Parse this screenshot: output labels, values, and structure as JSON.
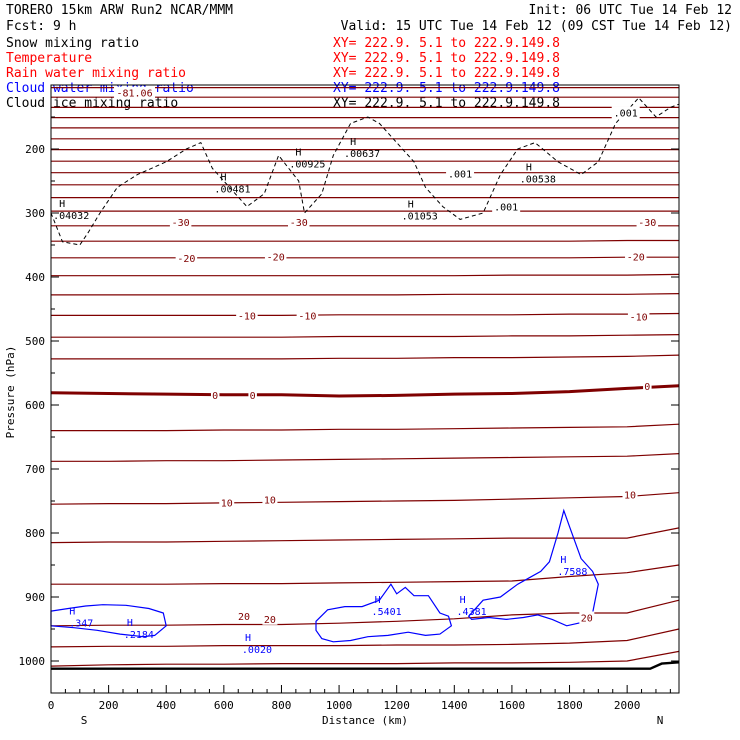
{
  "header": {
    "model": "TORERO  15km ARW   Run2    NCAR/MMM",
    "init": "Init: 06 UTC Tue 14 Feb 12",
    "fcst": "Fcst:    9 h",
    "valid": "Valid: 15 UTC Tue 14 Feb 12 (09 CST Tue 14 Feb 12)"
  },
  "fields": [
    {
      "name": "Snow mixing ratio",
      "range": "XY= 222.9.  5.1 to 222.9.149.8",
      "color": "#000000",
      "range_color": "#ff0000"
    },
    {
      "name": "Temperature",
      "range": "XY= 222.9.  5.1 to 222.9.149.8",
      "color": "#ff0000",
      "range_color": "#ff0000"
    },
    {
      "name": "Rain water mixing ratio",
      "range": "XY= 222.9.  5.1 to 222.9.149.8",
      "color": "#ff0000",
      "range_color": "#ff0000"
    },
    {
      "name": "Cloud water mixing ratio",
      "range": "XY= 222.9.  5.1 to 222.9.149.8",
      "color": "#0000ff",
      "range_color": "#0000ff"
    },
    {
      "name": "Cloud ice mixing ratio",
      "range": "XY= 222.9.  5.1 to 222.9.149.8",
      "color": "#000000",
      "range_color": "#000000"
    }
  ],
  "colors": {
    "temperature": "#7f0000",
    "cloud_water": "#0000ff",
    "snow": "#000000",
    "terrain": "#000000"
  },
  "chart_data": {
    "type": "line",
    "xlabel": "Distance (km)",
    "ylabel": "Pressure (hPa)",
    "xlim": [
      0,
      2180
    ],
    "ylim": [
      1050,
      100
    ],
    "x_ticks": [
      0,
      200,
      400,
      600,
      800,
      1000,
      1200,
      1400,
      1600,
      1800,
      2000
    ],
    "y_ticks": [
      200,
      300,
      400,
      500,
      600,
      700,
      800,
      900,
      1000
    ],
    "left_endpoint": "S",
    "right_endpoint": "N",
    "temperature_contours": {
      "interval_C": 5,
      "x": [
        0,
        200,
        400,
        600,
        800,
        1000,
        1200,
        1400,
        1600,
        1800,
        2000,
        2180
      ],
      "lines": [
        {
          "value": 30,
          "p": [
            1008,
            1006,
            1005,
            1005,
            1004,
            1004,
            1004,
            1003,
            1003,
            1002,
            1000,
            985
          ]
        },
        {
          "value": 25,
          "p": [
            978,
            977,
            977,
            976,
            976,
            976,
            975,
            975,
            974,
            972,
            968,
            950
          ]
        },
        {
          "value": 20,
          "p": [
            945,
            944,
            944,
            943,
            943,
            941,
            938,
            934,
            928,
            925,
            925,
            905
          ]
        },
        {
          "value": 15,
          "p": [
            880,
            880,
            880,
            879,
            879,
            878,
            877,
            876,
            875,
            868,
            862,
            850
          ]
        },
        {
          "value": 10,
          "p": [
            815,
            814,
            814,
            813,
            812,
            811,
            810,
            809,
            808,
            808,
            808,
            792
          ]
        },
        {
          "value": 10,
          "p": [
            755,
            754,
            754,
            753,
            752,
            751,
            750,
            749,
            747,
            745,
            743,
            737
          ]
        },
        {
          "value": 5,
          "p": [
            688,
            688,
            687,
            687,
            686,
            685,
            684,
            683,
            682,
            681,
            680,
            676
          ]
        },
        {
          "value": 5,
          "p": [
            640,
            640,
            640,
            639,
            639,
            638,
            638,
            637,
            636,
            635,
            634,
            630
          ]
        },
        {
          "value": 0,
          "p": [
            581,
            582,
            583,
            584,
            584,
            586,
            585,
            583,
            582,
            579,
            574,
            570
          ]
        },
        {
          "value": -5,
          "p": [
            528,
            528,
            528,
            528,
            528,
            527,
            527,
            526,
            526,
            525,
            524,
            522
          ]
        },
        {
          "value": -5,
          "p": [
            494,
            494,
            494,
            494,
            494,
            493,
            493,
            493,
            492,
            492,
            491,
            490
          ]
        },
        {
          "value": -10,
          "p": [
            460,
            460,
            460,
            460,
            460,
            459,
            459,
            459,
            459,
            458,
            458,
            457
          ]
        },
        {
          "value": -15,
          "p": [
            428,
            428,
            428,
            428,
            428,
            428,
            428,
            427,
            427,
            427,
            427,
            426
          ]
        },
        {
          "value": -15,
          "p": [
            398,
            398,
            398,
            398,
            398,
            398,
            398,
            398,
            397,
            397,
            397,
            396
          ]
        },
        {
          "value": -20,
          "p": [
            370,
            370,
            370,
            370,
            370,
            370,
            370,
            370,
            370,
            370,
            369,
            369
          ]
        },
        {
          "value": -25,
          "p": [
            344,
            344,
            344,
            344,
            344,
            344,
            344,
            344,
            344,
            344,
            343,
            343
          ]
        },
        {
          "value": -30,
          "p": [
            320,
            320,
            320,
            320,
            320,
            320,
            320,
            320,
            320,
            320,
            320,
            320
          ]
        },
        {
          "value": -35,
          "p": [
            297,
            297,
            297,
            297,
            297,
            297,
            297,
            297,
            297,
            297,
            297,
            297
          ]
        },
        {
          "value": -40,
          "p": [
            276,
            276,
            276,
            276,
            276,
            276,
            276,
            276,
            276,
            276,
            276,
            276
          ]
        },
        {
          "value": -45,
          "p": [
            256,
            256,
            256,
            256,
            256,
            256,
            256,
            256,
            256,
            256,
            256,
            256
          ]
        },
        {
          "value": -50,
          "p": [
            237,
            237,
            237,
            237,
            237,
            237,
            237,
            237,
            237,
            237,
            237,
            237
          ]
        },
        {
          "value": -55,
          "p": [
            219,
            219,
            219,
            219,
            219,
            219,
            219,
            219,
            219,
            219,
            219,
            219
          ]
        },
        {
          "value": -60,
          "p": [
            201,
            201,
            201,
            201,
            201,
            201,
            201,
            201,
            201,
            201,
            201,
            201
          ]
        },
        {
          "value": -65,
          "p": [
            184,
            184,
            184,
            184,
            184,
            184,
            184,
            184,
            184,
            184,
            184,
            184
          ]
        },
        {
          "value": -70,
          "p": [
            167,
            167,
            167,
            167,
            167,
            167,
            167,
            167,
            167,
            167,
            167,
            167
          ]
        },
        {
          "value": -75,
          "p": [
            151,
            151,
            151,
            151,
            151,
            151,
            151,
            151,
            151,
            151,
            151,
            151
          ]
        },
        {
          "value": -80,
          "p": [
            135,
            135,
            135,
            135,
            135,
            135,
            135,
            135,
            135,
            135,
            135,
            135
          ]
        },
        {
          "value": -85,
          "p": [
            119,
            119,
            119,
            119,
            119,
            119,
            119,
            119,
            119,
            119,
            119,
            119
          ]
        },
        {
          "value": -90,
          "p": [
            104,
            104,
            104,
            104,
            104,
            104,
            104,
            104,
            104,
            104,
            104,
            104
          ]
        }
      ],
      "labels": [
        {
          "text": "-81.06",
          "x": 290,
          "p": 112
        },
        {
          "text": "-30",
          "x": 450,
          "p": 314
        },
        {
          "text": "-30",
          "x": 860,
          "p": 314
        },
        {
          "text": "-30",
          "x": 2070,
          "p": 314
        },
        {
          "text": "-20",
          "x": 470,
          "p": 370
        },
        {
          "text": "-20",
          "x": 780,
          "p": 368
        },
        {
          "text": "-20",
          "x": 2030,
          "p": 368
        },
        {
          "text": "-10",
          "x": 680,
          "p": 460
        },
        {
          "text": "-10",
          "x": 890,
          "p": 460
        },
        {
          "text": "-10",
          "x": 2040,
          "p": 462
        },
        {
          "text": "0",
          "x": 570,
          "p": 584
        },
        {
          "text": "0",
          "x": 700,
          "p": 584
        },
        {
          "text": "0",
          "x": 2070,
          "p": 570
        },
        {
          "text": "10",
          "x": 610,
          "p": 752
        },
        {
          "text": "10",
          "x": 760,
          "p": 748
        },
        {
          "text": "10",
          "x": 2010,
          "p": 740
        },
        {
          "text": "20",
          "x": 670,
          "p": 930
        },
        {
          "text": "20",
          "x": 760,
          "p": 934
        },
        {
          "text": "20",
          "x": 1860,
          "p": 932
        }
      ]
    },
    "snow_mixing_ratio_contour": {
      "level": 0.001,
      "label": ".001",
      "x": [
        0,
        40,
        100,
        130,
        170,
        230,
        300,
        400,
        470,
        520,
        560,
        600,
        680,
        740,
        790,
        860,
        880,
        940,
        980,
        1040,
        1100,
        1140,
        1200,
        1260,
        1300,
        1360,
        1420,
        1500,
        1560,
        1620,
        1680,
        1760,
        1840,
        1900,
        1960,
        2040,
        2100,
        2150,
        2180
      ],
      "p": [
        300,
        345,
        350,
        330,
        300,
        260,
        240,
        220,
        200,
        190,
        230,
        250,
        290,
        270,
        210,
        250,
        300,
        270,
        210,
        160,
        150,
        160,
        190,
        220,
        260,
        290,
        310,
        300,
        240,
        200,
        190,
        220,
        240,
        220,
        160,
        120,
        150,
        135,
        130
      ],
      "labels": [
        {
          "text": ".001",
          "x": 1420,
          "p": 238
        },
        {
          "text": ".001",
          "x": 1580,
          "p": 290
        },
        {
          "text": ".001",
          "x": 1995,
          "p": 143
        }
      ]
    },
    "snow_maxima": [
      {
        "text": ".04032",
        "x": 70,
        "p": 303
      },
      {
        "text": ".00481",
        "x": 630,
        "p": 262
      },
      {
        "text": ".00925",
        "x": 890,
        "p": 223
      },
      {
        "text": ".00637",
        "x": 1080,
        "p": 206
      },
      {
        "text": ".01053",
        "x": 1280,
        "p": 304
      },
      {
        "text": ".00538",
        "x": 1690,
        "p": 246
      }
    ],
    "cloud_water_contours": [
      {
        "x": [
          0,
          60,
          120,
          180,
          260,
          340,
          390,
          400,
          360,
          320,
          240,
          160,
          80,
          0
        ],
        "p": [
          922,
          918,
          914,
          912,
          913,
          918,
          925,
          945,
          960,
          962,
          958,
          952,
          948,
          945
        ]
      },
      {
        "x": [
          920,
          960,
          1020,
          1080,
          1140,
          1180,
          1200,
          1230,
          1260,
          1310,
          1350,
          1380,
          1390,
          1350,
          1300,
          1240,
          1170,
          1100,
          1040,
          980,
          940,
          920
        ],
        "p": [
          938,
          920,
          915,
          915,
          905,
          880,
          895,
          885,
          898,
          898,
          925,
          930,
          945,
          958,
          960,
          955,
          960,
          962,
          968,
          970,
          965,
          952
        ]
      },
      {
        "x": [
          1450,
          1500,
          1560,
          1620,
          1660,
          1700,
          1730,
          1760,
          1780,
          1800,
          1840,
          1880,
          1900,
          1880,
          1840,
          1790,
          1740,
          1690,
          1640,
          1580,
          1520,
          1460,
          1450
        ],
        "p": [
          930,
          905,
          900,
          880,
          870,
          860,
          845,
          800,
          765,
          790,
          840,
          860,
          880,
          925,
          940,
          945,
          935,
          928,
          932,
          935,
          932,
          935,
          930
        ]
      }
    ],
    "cloud_water_maxima": [
      {
        "text": ".347",
        "x": 105,
        "p": 940
      },
      {
        "text": ".2184",
        "x": 305,
        "p": 958
      },
      {
        "text": ".0020",
        "x": 715,
        "p": 981
      },
      {
        "text": ".5401",
        "x": 1165,
        "p": 922
      },
      {
        "text": ".4381",
        "x": 1460,
        "p": 922
      },
      {
        "text": ".7588",
        "x": 1810,
        "p": 859
      }
    ],
    "terrain": {
      "x": [
        0,
        500,
        1000,
        1500,
        2000,
        2080,
        2120,
        2180
      ],
      "p": [
        1012,
        1012,
        1012,
        1012,
        1012,
        1012,
        1004,
        1002
      ]
    }
  }
}
